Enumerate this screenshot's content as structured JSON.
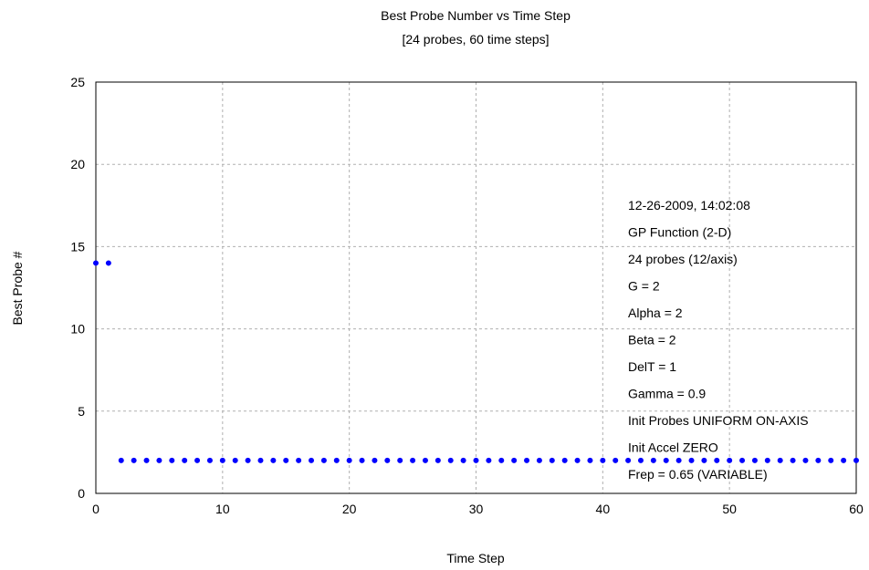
{
  "chart_data": {
    "type": "scatter",
    "title": "Best Probe Number vs Time Step",
    "subtitle": "[24 probes, 60 time steps]",
    "xlabel": "Time Step",
    "ylabel": "Best Probe #",
    "xlim": [
      0,
      60
    ],
    "ylim": [
      0,
      25
    ],
    "xticks": [
      0,
      10,
      20,
      30,
      40,
      50,
      60
    ],
    "yticks": [
      0,
      5,
      10,
      15,
      20,
      25
    ],
    "grid": true,
    "marker_color": "#0000ff",
    "series": [
      {
        "x": [
          0,
          1,
          2,
          3,
          4,
          5,
          6,
          7,
          8,
          9,
          10,
          11,
          12,
          13,
          14,
          15,
          16,
          17,
          18,
          19,
          20,
          21,
          22,
          23,
          24,
          25,
          26,
          27,
          28,
          29,
          30,
          31,
          32,
          33,
          34,
          35,
          36,
          37,
          38,
          39,
          40,
          41,
          42,
          43,
          44,
          45,
          46,
          47,
          48,
          49,
          50,
          51,
          52,
          53,
          54,
          55,
          56,
          57,
          58,
          59,
          60
        ],
        "y": [
          14,
          14,
          2,
          2,
          2,
          2,
          2,
          2,
          2,
          2,
          2,
          2,
          2,
          2,
          2,
          2,
          2,
          2,
          2,
          2,
          2,
          2,
          2,
          2,
          2,
          2,
          2,
          2,
          2,
          2,
          2,
          2,
          2,
          2,
          2,
          2,
          2,
          2,
          2,
          2,
          2,
          2,
          2,
          2,
          2,
          2,
          2,
          2,
          2,
          2,
          2,
          2,
          2,
          2,
          2,
          2,
          2,
          2,
          2,
          2,
          2
        ]
      }
    ],
    "annotations": [
      "12-26-2009, 14:02:08",
      "GP Function (2-D)",
      "24 probes (12/axis)",
      "G = 2",
      "Alpha = 2",
      "Beta = 2",
      "DelT = 1",
      "Gamma = 0.9",
      "Init Probes UNIFORM ON-AXIS",
      "Init Accel ZERO",
      "Frep = 0.65 (VARIABLE)"
    ]
  }
}
